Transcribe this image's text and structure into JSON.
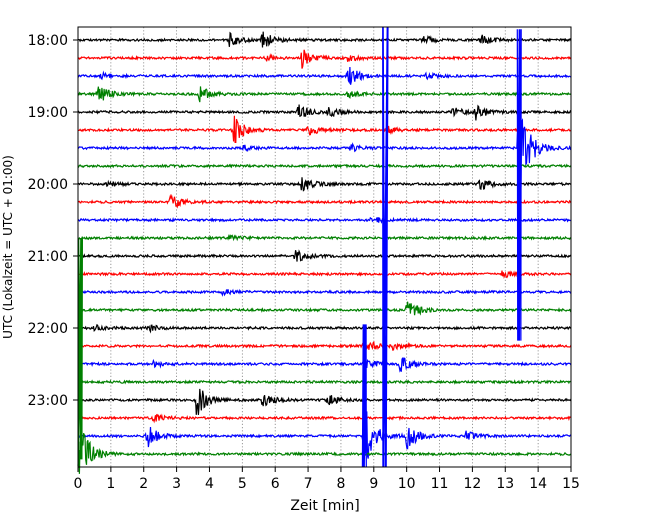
{
  "chart_data": {
    "type": "line",
    "subtype": "helicorder",
    "xlabel": "Zeit  [min]",
    "ylabel": "UTC (Lokalzeit = UTC + 01:00)",
    "xlim": [
      0,
      15
    ],
    "x_ticks": [
      "0",
      "1",
      "2",
      "3",
      "4",
      "5",
      "6",
      "7",
      "8",
      "9",
      "10",
      "11",
      "12",
      "13",
      "14",
      "15"
    ],
    "y_ticks": [
      "18:00",
      "19:00",
      "20:00",
      "21:00",
      "22:00",
      "23:00"
    ],
    "y_tick_rows": [
      0,
      4,
      8,
      12,
      16,
      20
    ],
    "grid": "vertical dotted at each minute",
    "trace_colors": [
      "#000000",
      "#ff0000",
      "#0000ff",
      "#008000"
    ],
    "row_start_times": [
      "18:00",
      "18:15",
      "18:30",
      "18:45",
      "19:00",
      "19:15",
      "19:30",
      "19:45",
      "20:00",
      "20:15",
      "20:30",
      "20:45",
      "21:00",
      "21:15",
      "21:30",
      "21:45",
      "22:00",
      "22:15",
      "22:30",
      "22:45",
      "23:00",
      "23:15",
      "23:30",
      "23:45"
    ],
    "events": [
      {
        "row": 0,
        "t": 4.6,
        "amp": 7
      },
      {
        "row": 0,
        "t": 5.6,
        "amp": 10
      },
      {
        "row": 0,
        "t": 10.5,
        "amp": 4
      },
      {
        "row": 0,
        "t": 12.2,
        "amp": 7
      },
      {
        "row": 1,
        "t": 5.7,
        "amp": 3
      },
      {
        "row": 1,
        "t": 6.8,
        "amp": 10
      },
      {
        "row": 1,
        "t": 8.2,
        "amp": 4
      },
      {
        "row": 2,
        "t": 0.7,
        "amp": 3
      },
      {
        "row": 2,
        "t": 8.2,
        "amp": 12
      },
      {
        "row": 2,
        "t": 10.5,
        "amp": 4
      },
      {
        "row": 3,
        "t": 0.6,
        "amp": 10
      },
      {
        "row": 3,
        "t": 3.7,
        "amp": 8
      },
      {
        "row": 3,
        "t": 8.2,
        "amp": 4
      },
      {
        "row": 4,
        "t": 6.7,
        "amp": 9
      },
      {
        "row": 4,
        "t": 7.6,
        "amp": 6
      },
      {
        "row": 4,
        "t": 11.4,
        "amp": 5
      },
      {
        "row": 4,
        "t": 12.1,
        "amp": 8
      },
      {
        "row": 5,
        "t": 4.7,
        "amp": 18
      },
      {
        "row": 5,
        "t": 7.0,
        "amp": 6
      },
      {
        "row": 5,
        "t": 9.4,
        "amp": 4
      },
      {
        "row": 6,
        "t": 5.0,
        "amp": 3
      },
      {
        "row": 6,
        "t": 8.3,
        "amp": 4
      },
      {
        "row": 6,
        "t": 13.4,
        "amp": 55
      },
      {
        "row": 8,
        "t": 0.9,
        "amp": 3
      },
      {
        "row": 8,
        "t": 6.8,
        "amp": 9
      },
      {
        "row": 8,
        "t": 12.2,
        "amp": 7
      },
      {
        "row": 9,
        "t": 2.8,
        "amp": 8
      },
      {
        "row": 10,
        "t": 8.9,
        "amp": 4
      },
      {
        "row": 11,
        "t": 4.6,
        "amp": 3
      },
      {
        "row": 12,
        "t": 6.6,
        "amp": 7
      },
      {
        "row": 13,
        "t": 12.9,
        "amp": 4
      },
      {
        "row": 14,
        "t": 4.4,
        "amp": 3
      },
      {
        "row": 15,
        "t": 10.0,
        "amp": 12
      },
      {
        "row": 16,
        "t": 0.5,
        "amp": 3
      },
      {
        "row": 16,
        "t": 2.1,
        "amp": 4
      },
      {
        "row": 17,
        "t": 8.7,
        "amp": 8
      },
      {
        "row": 17,
        "t": 9.6,
        "amp": 5
      },
      {
        "row": 18,
        "t": 2.3,
        "amp": 3
      },
      {
        "row": 18,
        "t": 8.7,
        "amp": 6
      },
      {
        "row": 18,
        "t": 9.8,
        "amp": 8
      },
      {
        "row": 20,
        "t": 3.6,
        "amp": 18
      },
      {
        "row": 20,
        "t": 5.6,
        "amp": 8
      },
      {
        "row": 20,
        "t": 7.6,
        "amp": 6
      },
      {
        "row": 21,
        "t": 2.3,
        "amp": 4
      },
      {
        "row": 22,
        "t": 2.1,
        "amp": 12
      },
      {
        "row": 22,
        "t": 8.7,
        "amp": 35
      },
      {
        "row": 22,
        "t": 10.0,
        "amp": 14
      },
      {
        "row": 22,
        "t": 11.8,
        "amp": 5
      },
      {
        "row": 23,
        "t": 0.0,
        "amp": 40
      }
    ],
    "spikes": [
      {
        "row": 23,
        "t": 0.05,
        "y_top_row": 11.0,
        "y_bottom_row": 23.3,
        "color_index": 3
      },
      {
        "row": 20,
        "t": 9.35,
        "y_top_row": -1.0,
        "y_bottom_row": 24.5,
        "color_index": 2
      },
      {
        "row": 6,
        "t": 13.4,
        "y_top_row": -0.6,
        "y_bottom_row": 16.7,
        "color_index": 2
      },
      {
        "row": 22,
        "t": 8.7,
        "y_top_row": 15.8,
        "y_bottom_row": 24.5,
        "color_index": 2
      }
    ]
  }
}
